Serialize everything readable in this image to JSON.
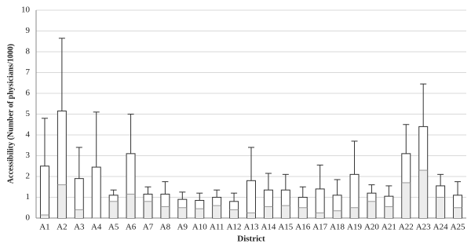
{
  "chart_data": {
    "type": "bar",
    "y_label": "Accessibility (Number of physicians/1000)",
    "x_label": "District",
    "categories": [
      "A1",
      "A2",
      "A3",
      "A4",
      "A5",
      "A6",
      "A7",
      "A8",
      "A9",
      "A10",
      "A11",
      "A12",
      "A13",
      "A14",
      "A15",
      "A16",
      "A17",
      "A18",
      "A19",
      "A20",
      "A21",
      "A22",
      "A23",
      "A24",
      "A25"
    ],
    "values": [
      2.5,
      5.15,
      1.9,
      2.45,
      1.1,
      3.1,
      1.15,
      1.15,
      0.9,
      0.85,
      1.0,
      0.8,
      1.8,
      1.35,
      1.35,
      1.0,
      1.4,
      1.1,
      2.1,
      1.2,
      1.05,
      3.1,
      4.4,
      1.55,
      1.1
    ],
    "lower": [
      0.15,
      1.6,
      0.4,
      0,
      0.8,
      1.15,
      0.8,
      0.55,
      0.5,
      0.45,
      0.6,
      0.4,
      0.25,
      0.55,
      0.6,
      0.5,
      0.25,
      0.35,
      0.5,
      0.8,
      0.55,
      1.7,
      2.3,
      1.0,
      0.5
    ],
    "upper": [
      4.8,
      8.65,
      3.4,
      5.1,
      1.35,
      5.0,
      1.5,
      1.75,
      1.25,
      1.2,
      1.35,
      1.2,
      3.4,
      2.15,
      2.1,
      1.5,
      2.55,
      1.85,
      3.7,
      1.6,
      1.55,
      4.5,
      6.45,
      2.1,
      1.75
    ],
    "color": "#ffffff",
    "lower_color": "#ececec",
    "ylim": [
      0,
      10
    ],
    "yticks": [
      0,
      1,
      2,
      3,
      4,
      5,
      6,
      7,
      8,
      9,
      10
    ],
    "grid": true
  }
}
